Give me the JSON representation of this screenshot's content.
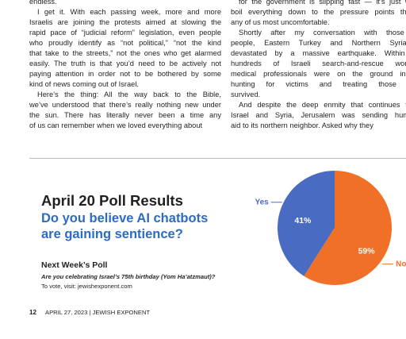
{
  "article": {
    "left_column": [
      [
        "endless."
      ],
      [
        "I get it. With each passing week, more and more",
        "Israelis are joining the protests aimed at slowing the",
        "rapid pace of “judicial reform” legislation, even people",
        "who proudly identify as “not political,” “not the kind",
        "that take to the streets,” not the ones who get alarmed",
        "easily. The truth is that you’d need to be actively not",
        "paying attention in order not to be bothered by some",
        "kind of news coming out of Israel."
      ],
      [
        "Here’s the thing: All the way back to the Bible,",
        "we’ve understood that there’s really nothing new under",
        "the sun. There has literally never been a time any",
        "of us can remember when we loved everything about"
      ]
    ],
    "right_column": [
      [
        "for the government is slipping fast — it’s just wron",
        "boil everything down to the pressure points that r",
        "any of us most uncomfortable."
      ],
      [
        "Shortly after my conversation with those yo",
        "people, Eastern Turkey and Northern Syria w",
        "devastated by a massive earthquake. Within ho",
        "hundreds of Israeli search-and-rescue workers",
        "medical professionals were on the ground in Tu",
        "hunting for victims and treating those who",
        "survived."
      ],
      [
        "And despite the deep enmity that continues to d",
        "Israel and Syria, Jerusalem was sending humanit",
        "aid to its northern neighbor. Asked why they"
      ]
    ]
  },
  "chart_data": {
    "type": "pie",
    "title": "April 20 Poll Results",
    "subtitle": [
      "Do you believe AI chatbots",
      "are gaining sentience?"
    ],
    "categories": [
      "Yes",
      "No"
    ],
    "values": [
      41,
      59
    ],
    "value_labels": [
      "41%",
      "59%"
    ],
    "colors": [
      "#4a6bc2",
      "#f07028"
    ]
  },
  "next_poll": {
    "heading": "Next Week’s Poll",
    "question": "Are you celebrating Israel’s 75th birthday (Yom Ha’atzmaut)?",
    "vote": "To vote, visit: jewishexponent.com"
  },
  "footer": {
    "page": "12",
    "issue": "APRIL 27, 2023 | JEWISH EXPONENT"
  }
}
